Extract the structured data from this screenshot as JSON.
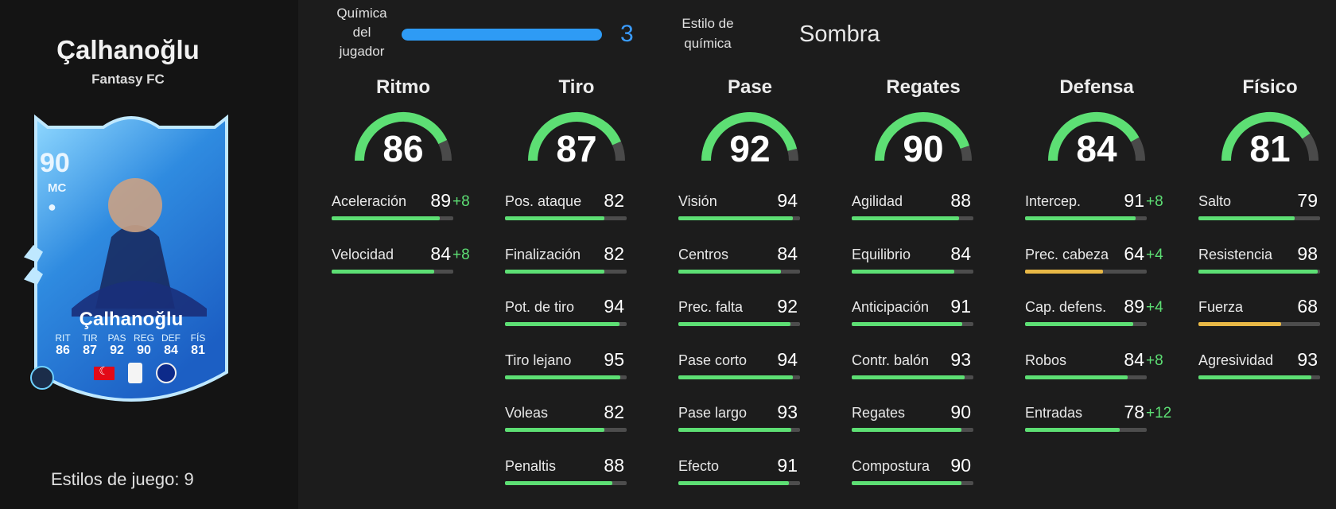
{
  "player": {
    "name": "Çalhanoğlu",
    "subtitle": "Fantasy FC",
    "playstyles_text": "Estilos de juego: 9"
  },
  "card": {
    "rating": "90",
    "position": "MC",
    "name": "Çalhanoğlu",
    "stats": [
      {
        "label": "RIT",
        "value": "86"
      },
      {
        "label": "TIR",
        "value": "87"
      },
      {
        "label": "PAS",
        "value": "92"
      },
      {
        "label": "REG",
        "value": "90"
      },
      {
        "label": "DEF",
        "value": "84"
      },
      {
        "label": "FÍS",
        "value": "81"
      }
    ],
    "colors": {
      "frame": "#3aa8ef",
      "inner": "#1f6fd1",
      "light": "#8fd8ff"
    }
  },
  "chemistry": {
    "label": "Química del jugador",
    "value": "3",
    "fill_fraction": 1.0,
    "color": "#2e9bf5"
  },
  "chem_style": {
    "label": "Estilo de química",
    "value": "Sombra"
  },
  "colors": {
    "green": "#5ddf74",
    "yellow": "#e8b846",
    "track": "#4d4d4d",
    "gauge_rest": "#4a4a4a"
  },
  "columns": [
    {
      "title": "Ritmo",
      "value": "86",
      "attrs": [
        {
          "name": "Aceleración",
          "value": "89",
          "boost": "+8"
        },
        {
          "name": "Velocidad",
          "value": "84",
          "boost": "+8"
        }
      ]
    },
    {
      "title": "Tiro",
      "value": "87",
      "attrs": [
        {
          "name": "Pos. ataque",
          "value": "82",
          "boost": ""
        },
        {
          "name": "Finalización",
          "value": "82",
          "boost": ""
        },
        {
          "name": "Pot. de tiro",
          "value": "94",
          "boost": ""
        },
        {
          "name": "Tiro lejano",
          "value": "95",
          "boost": ""
        },
        {
          "name": "Voleas",
          "value": "82",
          "boost": ""
        },
        {
          "name": "Penaltis",
          "value": "88",
          "boost": ""
        }
      ]
    },
    {
      "title": "Pase",
      "value": "92",
      "attrs": [
        {
          "name": "Visión",
          "value": "94",
          "boost": ""
        },
        {
          "name": "Centros",
          "value": "84",
          "boost": ""
        },
        {
          "name": "Prec. falta",
          "value": "92",
          "boost": ""
        },
        {
          "name": "Pase corto",
          "value": "94",
          "boost": ""
        },
        {
          "name": "Pase largo",
          "value": "93",
          "boost": ""
        },
        {
          "name": "Efecto",
          "value": "91",
          "boost": ""
        }
      ]
    },
    {
      "title": "Regates",
      "value": "90",
      "attrs": [
        {
          "name": "Agilidad",
          "value": "88",
          "boost": ""
        },
        {
          "name": "Equilibrio",
          "value": "84",
          "boost": ""
        },
        {
          "name": "Anticipación",
          "value": "91",
          "boost": ""
        },
        {
          "name": "Contr. balón",
          "value": "93",
          "boost": ""
        },
        {
          "name": "Regates",
          "value": "90",
          "boost": ""
        },
        {
          "name": "Compostura",
          "value": "90",
          "boost": ""
        }
      ]
    },
    {
      "title": "Defensa",
      "value": "84",
      "attrs": [
        {
          "name": "Intercep.",
          "value": "91",
          "boost": "+8"
        },
        {
          "name": "Prec. cabeza",
          "value": "64",
          "boost": "+4"
        },
        {
          "name": "Cap. defens.",
          "value": "89",
          "boost": "+4"
        },
        {
          "name": "Robos",
          "value": "84",
          "boost": "+8"
        },
        {
          "name": "Entradas",
          "value": "78",
          "boost": "+12"
        }
      ]
    },
    {
      "title": "Físico",
      "value": "81",
      "attrs": [
        {
          "name": "Salto",
          "value": "79",
          "boost": ""
        },
        {
          "name": "Resistencia",
          "value": "98",
          "boost": ""
        },
        {
          "name": "Fuerza",
          "value": "68",
          "boost": ""
        },
        {
          "name": "Agresividad",
          "value": "93",
          "boost": ""
        }
      ]
    }
  ]
}
